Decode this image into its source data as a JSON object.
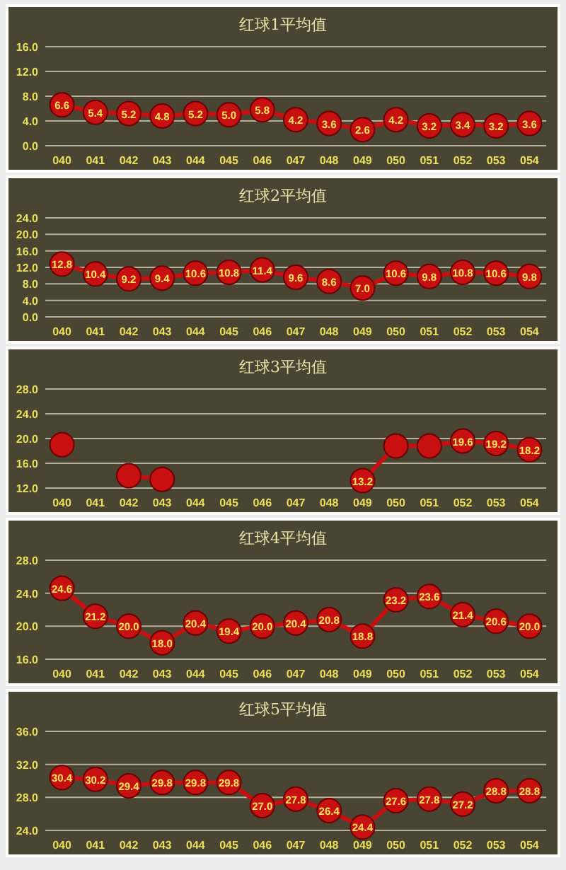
{
  "chart_data": [
    {
      "type": "line",
      "title": "红球1平均值",
      "categories": [
        "040",
        "041",
        "042",
        "043",
        "044",
        "045",
        "046",
        "047",
        "048",
        "049",
        "050",
        "051",
        "052",
        "053",
        "054"
      ],
      "series": [
        {
          "color": "#c81010",
          "values": [
            6.6,
            5.4,
            5.2,
            4.8,
            5.2,
            5.0,
            5.8,
            4.2,
            3.6,
            2.6,
            4.2,
            3.2,
            3.4,
            3.2,
            3.6
          ],
          "value_labels": [
            "6.6",
            "5.4",
            "5.2",
            "4.8",
            "5.2",
            "5.0",
            "5.8",
            "4.2",
            "3.6",
            "2.6",
            "4.2",
            "3.2",
            "3.4",
            "3.2",
            "3.6"
          ]
        }
      ],
      "ylim": [
        0,
        16
      ],
      "yticks": [
        {
          "value": 0,
          "label": "0.0"
        },
        {
          "value": 4,
          "label": "4.0"
        },
        {
          "value": 8,
          "label": "8.0"
        },
        {
          "value": 12,
          "label": "12.0"
        },
        {
          "value": 16,
          "label": "16.0"
        }
      ],
      "grid": "y",
      "marker": "circle",
      "line_style": "solid"
    },
    {
      "type": "line",
      "title": "红球2平均值",
      "categories": [
        "040",
        "041",
        "042",
        "043",
        "044",
        "045",
        "046",
        "047",
        "048",
        "049",
        "050",
        "051",
        "052",
        "053",
        "054"
      ],
      "series": [
        {
          "color": "#c81010",
          "values": [
            12.8,
            10.4,
            9.2,
            9.4,
            10.6,
            10.8,
            11.4,
            9.6,
            8.6,
            7.0,
            10.6,
            9.8,
            10.8,
            10.6,
            9.8
          ],
          "value_labels": [
            "12.8",
            "10.4",
            "9.2",
            "9.4",
            "10.6",
            "10.8",
            "11.4",
            "9.6",
            "8.6",
            "7.0",
            "10.6",
            "9.8",
            "10.8",
            "10.6",
            "9.8"
          ]
        }
      ],
      "ylim": [
        0,
        24
      ],
      "yticks": [
        {
          "value": 0,
          "label": "0.0"
        },
        {
          "value": 4,
          "label": "4.0"
        },
        {
          "value": 8,
          "label": "8.0"
        },
        {
          "value": 12,
          "label": "12.0"
        },
        {
          "value": 16,
          "label": "16.0"
        },
        {
          "value": 20,
          "label": "20.0"
        },
        {
          "value": 24,
          "label": "24.0"
        }
      ],
      "grid": "y",
      "marker": "circle",
      "line_style": "solid"
    },
    {
      "type": "line",
      "title": "红球3平均值",
      "categories": [
        "040",
        "041",
        "042",
        "043",
        "044",
        "045",
        "046",
        "047",
        "048",
        "049",
        "050",
        "051",
        "052",
        "053",
        "054"
      ],
      "series": [
        {
          "color": "#c81010",
          "values": [
            19.0,
            null,
            14.0,
            13.4,
            null,
            null,
            null,
            null,
            null,
            13.2,
            18.8,
            18.8,
            19.6,
            19.2,
            18.2
          ],
          "value_labels": [
            null,
            null,
            null,
            null,
            null,
            null,
            null,
            null,
            null,
            "13.2",
            null,
            null,
            "19.6",
            "19.2",
            "18.2"
          ]
        }
      ],
      "ylim": [
        12,
        28
      ],
      "yticks": [
        {
          "value": 12,
          "label": "12.0"
        },
        {
          "value": 16,
          "label": "16.0"
        },
        {
          "value": 20,
          "label": "20.0"
        },
        {
          "value": 24,
          "label": "24.0"
        },
        {
          "value": 28,
          "label": "28.0"
        }
      ],
      "grid": "y",
      "marker": "circle",
      "line_style": "solid"
    },
    {
      "type": "line",
      "title": "红球4平均值",
      "categories": [
        "040",
        "041",
        "042",
        "043",
        "044",
        "045",
        "046",
        "047",
        "048",
        "049",
        "050",
        "051",
        "052",
        "053",
        "054"
      ],
      "series": [
        {
          "color": "#c81010",
          "values": [
            24.6,
            21.2,
            20.0,
            18.0,
            20.4,
            19.4,
            20.0,
            20.4,
            20.8,
            18.8,
            23.2,
            23.6,
            21.4,
            20.6,
            20.0
          ],
          "value_labels": [
            "24.6",
            "21.2",
            "20.0",
            "18.0",
            "20.4",
            "19.4",
            "20.0",
            "20.4",
            "20.8",
            "18.8",
            "23.2",
            "23.6",
            "21.4",
            "20.6",
            "20.0"
          ]
        }
      ],
      "ylim": [
        16,
        28
      ],
      "yticks": [
        {
          "value": 16,
          "label": "16.0"
        },
        {
          "value": 20,
          "label": "20.0"
        },
        {
          "value": 24,
          "label": "24.0"
        },
        {
          "value": 28,
          "label": "28.0"
        }
      ],
      "grid": "y",
      "marker": "circle",
      "line_style": "solid"
    },
    {
      "type": "line",
      "title": "红球5平均值",
      "categories": [
        "040",
        "041",
        "042",
        "043",
        "044",
        "045",
        "046",
        "047",
        "048",
        "049",
        "050",
        "051",
        "052",
        "053",
        "054"
      ],
      "series": [
        {
          "color": "#c81010",
          "values": [
            30.4,
            30.2,
            29.4,
            29.8,
            29.8,
            29.8,
            27.0,
            27.8,
            26.4,
            24.4,
            27.6,
            27.8,
            27.2,
            28.8,
            28.8
          ],
          "value_labels": [
            "30.4",
            "30.2",
            "29.4",
            "29.8",
            "29.8",
            "29.8",
            "27.0",
            "27.8",
            "26.4",
            "24.4",
            "27.6",
            "27.8",
            "27.2",
            "28.8",
            "28.8"
          ]
        }
      ],
      "ylim": [
        24,
        36
      ],
      "yticks": [
        {
          "value": 24,
          "label": "24.0"
        },
        {
          "value": 28,
          "label": "28.0"
        },
        {
          "value": 32,
          "label": "32.0"
        },
        {
          "value": 36,
          "label": "36.0"
        }
      ],
      "grid": "y",
      "marker": "circle",
      "line_style": "solid"
    }
  ]
}
